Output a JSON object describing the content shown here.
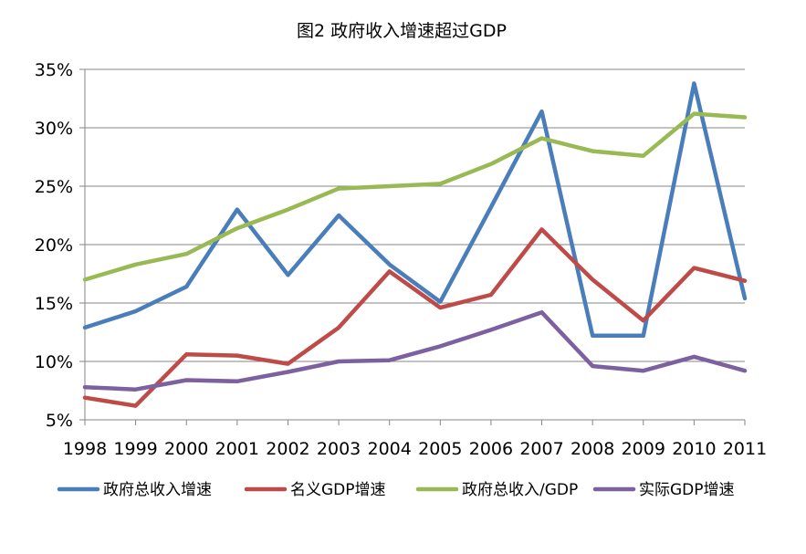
{
  "chart_data": {
    "type": "line",
    "title": "图2  政府收入增速超过GDP",
    "xlabel": "",
    "ylabel": "",
    "categories": [
      "1998",
      "1999",
      "2000",
      "2001",
      "2002",
      "2003",
      "2004",
      "2005",
      "2006",
      "2007",
      "2008",
      "2009",
      "2010",
      "2011"
    ],
    "ylim": [
      5,
      35
    ],
    "yticks": [
      "5%",
      "10%",
      "15%",
      "20%",
      "25%",
      "30%",
      "35%"
    ],
    "grid": true,
    "legend_position": "bottom",
    "series": [
      {
        "name": "政府总收入增速",
        "color": "#4a7ebb",
        "values": [
          12.9,
          14.3,
          16.4,
          23.0,
          17.4,
          22.5,
          18.3,
          15.1,
          23.2,
          31.4,
          12.2,
          12.2,
          33.8,
          15.4
        ]
      },
      {
        "name": "名义GDP增速",
        "color": "#be4b48",
        "values": [
          6.9,
          6.2,
          10.6,
          10.5,
          9.8,
          12.9,
          17.7,
          14.6,
          15.7,
          21.3,
          17.0,
          13.5,
          18.0,
          16.9
        ]
      },
      {
        "name": "政府总收入/GDP",
        "color": "#98b954",
        "values": [
          17.0,
          18.3,
          19.2,
          21.4,
          23.0,
          24.8,
          25.0,
          25.2,
          26.9,
          29.1,
          28.0,
          27.6,
          31.2,
          30.9
        ]
      },
      {
        "name": "实际GDP增速",
        "color": "#7d60a0",
        "values": [
          7.8,
          7.6,
          8.4,
          8.3,
          9.1,
          10.0,
          10.1,
          11.3,
          12.7,
          14.2,
          9.6,
          9.2,
          10.4,
          9.2
        ]
      }
    ]
  }
}
